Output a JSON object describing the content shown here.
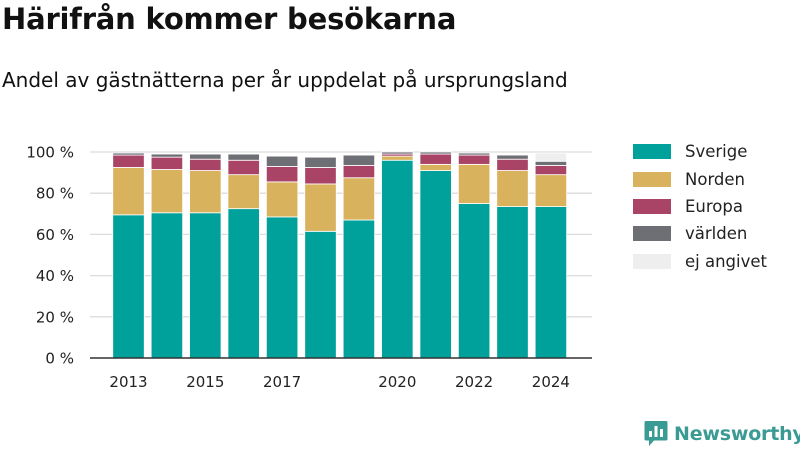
{
  "header": {
    "title": "Härifrån kommer besökarna",
    "subtitle": "Andel av gästnätterna per år uppdelat på ursprungsland"
  },
  "brand": {
    "name": "Newsworthy",
    "icon": "bar-chart-logo-icon",
    "color": "#3a9a94"
  },
  "colors": {
    "Sverige": "#00a19a",
    "Norden": "#d9b25e",
    "Europa": "#a94467",
    "världen": "#6e6f75",
    "ej angivet": "#eeeeee",
    "grid": "#dcdcdc",
    "axis": "#333333"
  },
  "chart_data": {
    "type": "bar",
    "stacked": true,
    "categories": [
      "2013",
      "2014",
      "2015",
      "2016",
      "2017",
      "2018",
      "2019",
      "2020",
      "2021",
      "2022",
      "2023",
      "2024"
    ],
    "x_tick_labels": [
      "2013",
      "2015",
      "2017",
      "2020",
      "2022",
      "2024"
    ],
    "y_tick_labels": [
      "0 %",
      "20 %",
      "40 %",
      "60 %",
      "80 %",
      "100 %"
    ],
    "ylim": [
      0,
      100
    ],
    "grid": true,
    "legend_position": "right",
    "series": [
      {
        "name": "Sverige",
        "values": [
          69.5,
          70.5,
          70.5,
          72.5,
          68.5,
          61.5,
          67,
          96,
          91,
          75,
          73.5,
          73.5
        ]
      },
      {
        "name": "Norden",
        "values": [
          23,
          21,
          20.5,
          16.5,
          17,
          23,
          20.5,
          2,
          3,
          19,
          17.5,
          15.5
        ]
      },
      {
        "name": "Europa",
        "values": [
          6,
          6,
          5.5,
          7,
          7.5,
          8,
          6,
          1,
          5,
          4.5,
          5.5,
          4.5
        ]
      },
      {
        "name": "världen",
        "values": [
          1,
          1.5,
          2.5,
          3,
          5,
          5,
          5,
          1,
          1,
          1,
          2,
          2
        ]
      },
      {
        "name": "ej angivet",
        "values": [
          0,
          0,
          0,
          0,
          0,
          0,
          0,
          0,
          0,
          0,
          0,
          4
        ]
      }
    ]
  }
}
